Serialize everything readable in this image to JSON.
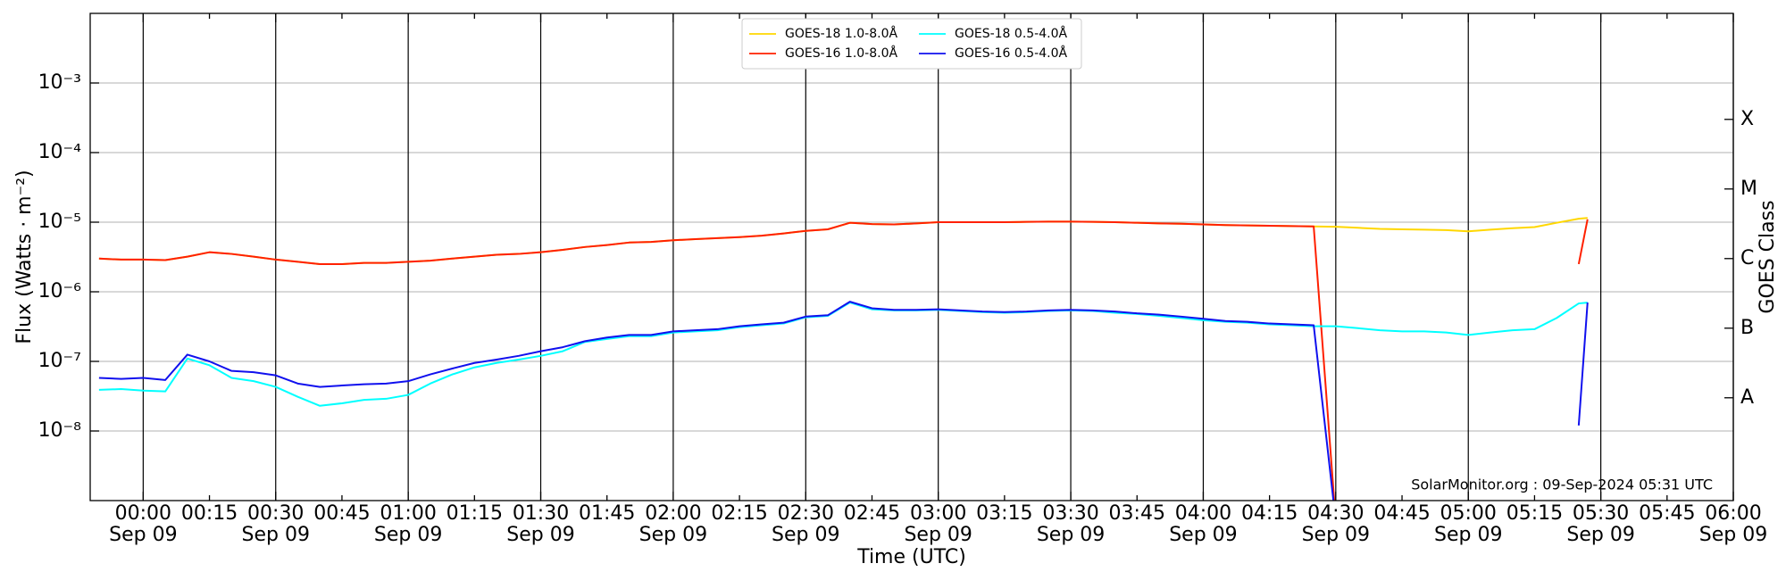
{
  "chart_data": {
    "type": "line",
    "ylabel": "Flux (Watts · m⁻²)",
    "xlabel": "Time (UTC)",
    "y2label": "GOES Class",
    "annotation": "SolarMonitor.org : 09-Sep-2024 05:31 UTC",
    "ylog": true,
    "grid": true,
    "legend": "upper center",
    "legend_columns": 2,
    "xlim": [
      -12,
      360
    ],
    "ylim": [
      1e-09,
      0.01
    ],
    "y2lim": [
      1e-09,
      0.01
    ],
    "xticks": [
      {
        "value": 0,
        "label": "00:00\nSep 09"
      },
      {
        "value": 30,
        "label": "00:30\nSep 09"
      },
      {
        "value": 60,
        "label": "01:00\nSep 09"
      },
      {
        "value": 90,
        "label": "01:30\nSep 09"
      },
      {
        "value": 120,
        "label": "02:00\nSep 09"
      },
      {
        "value": 150,
        "label": "02:30\nSep 09"
      },
      {
        "value": 180,
        "label": "03:00\nSep 09"
      },
      {
        "value": 210,
        "label": "03:30\nSep 09"
      },
      {
        "value": 240,
        "label": "04:00\nSep 09"
      },
      {
        "value": 270,
        "label": "04:30\nSep 09"
      },
      {
        "value": 300,
        "label": "05:00\nSep 09"
      },
      {
        "value": 330,
        "label": "05:30\nSep 09"
      },
      {
        "value": 360,
        "label": "06:00\nSep 09"
      }
    ],
    "xticks_minor": [
      {
        "value": 15,
        "label": "00:15"
      },
      {
        "value": 45,
        "label": "00:45"
      },
      {
        "value": 75,
        "label": "01:15"
      },
      {
        "value": 105,
        "label": "01:45"
      },
      {
        "value": 135,
        "label": "02:15"
      },
      {
        "value": 165,
        "label": "02:45"
      },
      {
        "value": 195,
        "label": "03:15"
      },
      {
        "value": 225,
        "label": "03:45"
      },
      {
        "value": 255,
        "label": "04:15"
      },
      {
        "value": 285,
        "label": "04:45"
      },
      {
        "value": 315,
        "label": "05:15"
      },
      {
        "value": 345,
        "label": "05:45"
      }
    ],
    "yticks": [
      {
        "value": 1e-08,
        "label": "10⁻⁸"
      },
      {
        "value": 1e-07,
        "label": "10⁻⁷"
      },
      {
        "value": 1e-06,
        "label": "10⁻⁶"
      },
      {
        "value": 1e-05,
        "label": "10⁻⁵"
      },
      {
        "value": 0.0001,
        "label": "10⁻⁴"
      },
      {
        "value": 0.001,
        "label": "10⁻³"
      }
    ],
    "y2ticks": [
      {
        "value": 3e-08,
        "label": "A"
      },
      {
        "value": 3e-07,
        "label": "B"
      },
      {
        "value": 3e-06,
        "label": "C"
      },
      {
        "value": 3e-05,
        "label": "M"
      },
      {
        "value": 0.0003,
        "label": "X"
      }
    ],
    "x": [
      -10,
      -5,
      0,
      5,
      10,
      15,
      20,
      25,
      30,
      35,
      40,
      45,
      50,
      55,
      60,
      65,
      70,
      75,
      80,
      85,
      90,
      95,
      100,
      105,
      110,
      115,
      120,
      125,
      130,
      135,
      140,
      145,
      150,
      155,
      160,
      165,
      170,
      175,
      180,
      185,
      190,
      195,
      200,
      205,
      210,
      215,
      220,
      225,
      230,
      235,
      240,
      245,
      250,
      255,
      260,
      265,
      270,
      275,
      280,
      285,
      290,
      295,
      300,
      305,
      310,
      315,
      320,
      325,
      327
    ],
    "series": [
      {
        "name": "GOES-18 1.0-8.0Å",
        "color": "#ffd700",
        "values": [
          3e-06,
          2.9e-06,
          2.9e-06,
          2.85e-06,
          3.2e-06,
          3.7e-06,
          3.5e-06,
          3.2e-06,
          2.9e-06,
          2.7e-06,
          2.5e-06,
          2.5e-06,
          2.6e-06,
          2.6e-06,
          2.7e-06,
          2.8e-06,
          3e-06,
          3.2e-06,
          3.4e-06,
          3.5e-06,
          3.7e-06,
          4e-06,
          4.4e-06,
          4.7e-06,
          5.1e-06,
          5.2e-06,
          5.5e-06,
          5.7e-06,
          5.9e-06,
          6.1e-06,
          6.4e-06,
          6.9e-06,
          7.5e-06,
          7.9e-06,
          9.8e-06,
          9.4e-06,
          9.3e-06,
          9.6e-06,
          1e-05,
          1e-05,
          1e-05,
          1e-05,
          1.01e-05,
          1.02e-05,
          1.02e-05,
          1.01e-05,
          1e-05,
          9.8e-06,
          9.6e-06,
          9.5e-06,
          9.3e-06,
          9.1e-06,
          9e-06,
          8.9e-06,
          8.8e-06,
          8.7e-06,
          8.6e-06,
          8.3e-06,
          8e-06,
          7.9e-06,
          7.8e-06,
          7.7e-06,
          7.4e-06,
          7.8e-06,
          8.2e-06,
          8.5e-06,
          9.8e-06,
          1.12e-05,
          1.15e-05
        ]
      },
      {
        "name": "GOES-16 1.0-8.0Å",
        "color": "#ff2000",
        "values": [
          3e-06,
          2.9e-06,
          2.9e-06,
          2.85e-06,
          3.2e-06,
          3.7e-06,
          3.5e-06,
          3.2e-06,
          2.9e-06,
          2.7e-06,
          2.5e-06,
          2.5e-06,
          2.6e-06,
          2.6e-06,
          2.7e-06,
          2.8e-06,
          3e-06,
          3.2e-06,
          3.4e-06,
          3.5e-06,
          3.7e-06,
          4e-06,
          4.4e-06,
          4.7e-06,
          5.1e-06,
          5.2e-06,
          5.5e-06,
          5.7e-06,
          5.9e-06,
          6.1e-06,
          6.4e-06,
          6.9e-06,
          7.5e-06,
          7.9e-06,
          9.8e-06,
          9.4e-06,
          9.3e-06,
          9.6e-06,
          1e-05,
          1e-05,
          1e-05,
          1e-05,
          1.01e-05,
          1.02e-05,
          1.02e-05,
          1.01e-05,
          1e-05,
          9.8e-06,
          9.6e-06,
          9.5e-06,
          9.3e-06,
          9.1e-06,
          9e-06,
          8.9e-06,
          8.8e-06,
          8.7e-06,
          5e-10,
          null,
          null,
          null,
          null,
          null,
          null,
          null,
          null,
          null,
          null,
          2.5e-06,
          1.1e-05
        ]
      },
      {
        "name": "GOES-18 0.5-4.0Å",
        "color": "#00ffff",
        "values": [
          3.9e-08,
          4e-08,
          3.8e-08,
          3.7e-08,
          1.1e-07,
          8.8e-08,
          5.8e-08,
          5.2e-08,
          4.3e-08,
          3.1e-08,
          2.3e-08,
          2.5e-08,
          2.8e-08,
          2.9e-08,
          3.3e-08,
          4.8e-08,
          6.5e-08,
          8.2e-08,
          9.5e-08,
          1.06e-07,
          1.2e-07,
          1.4e-07,
          1.9e-07,
          2.1e-07,
          2.3e-07,
          2.3e-07,
          2.6e-07,
          2.7e-07,
          2.8e-07,
          3.1e-07,
          3.3e-07,
          3.5e-07,
          4.3e-07,
          4.5e-07,
          7e-07,
          5.6e-07,
          5.4e-07,
          5.4e-07,
          5.5e-07,
          5.3e-07,
          5.1e-07,
          5e-07,
          5.1e-07,
          5.3e-07,
          5.4e-07,
          5.3e-07,
          5e-07,
          4.8e-07,
          4.5e-07,
          4.2e-07,
          3.9e-07,
          3.7e-07,
          3.6e-07,
          3.4e-07,
          3.3e-07,
          3.2e-07,
          3.2e-07,
          3e-07,
          2.8e-07,
          2.7e-07,
          2.7e-07,
          2.6e-07,
          2.4e-07,
          2.6e-07,
          2.8e-07,
          2.9e-07,
          4.2e-07,
          6.8e-07,
          7e-07
        ]
      },
      {
        "name": "GOES-16 0.5-4.0Å",
        "color": "#1010ee",
        "values": [
          5.8e-08,
          5.6e-08,
          5.8e-08,
          5.4e-08,
          1.25e-07,
          1e-07,
          7.3e-08,
          7e-08,
          6.3e-08,
          4.8e-08,
          4.3e-08,
          4.5e-08,
          4.7e-08,
          4.8e-08,
          5.2e-08,
          6.5e-08,
          7.9e-08,
          9.5e-08,
          1.06e-07,
          1.2e-07,
          1.4e-07,
          1.6e-07,
          1.95e-07,
          2.2e-07,
          2.4e-07,
          2.4e-07,
          2.7e-07,
          2.8e-07,
          2.9e-07,
          3.2e-07,
          3.4e-07,
          3.6e-07,
          4.4e-07,
          4.6e-07,
          7.2e-07,
          5.8e-07,
          5.5e-07,
          5.5e-07,
          5.6e-07,
          5.4e-07,
          5.2e-07,
          5.1e-07,
          5.2e-07,
          5.4e-07,
          5.5e-07,
          5.4e-07,
          5.2e-07,
          4.9e-07,
          4.7e-07,
          4.4e-07,
          4.1e-07,
          3.8e-07,
          3.7e-07,
          3.5e-07,
          3.4e-07,
          3.3e-07,
          5e-10,
          null,
          null,
          null,
          null,
          null,
          null,
          null,
          null,
          null,
          null,
          1.2e-08,
          7e-07
        ]
      }
    ]
  }
}
